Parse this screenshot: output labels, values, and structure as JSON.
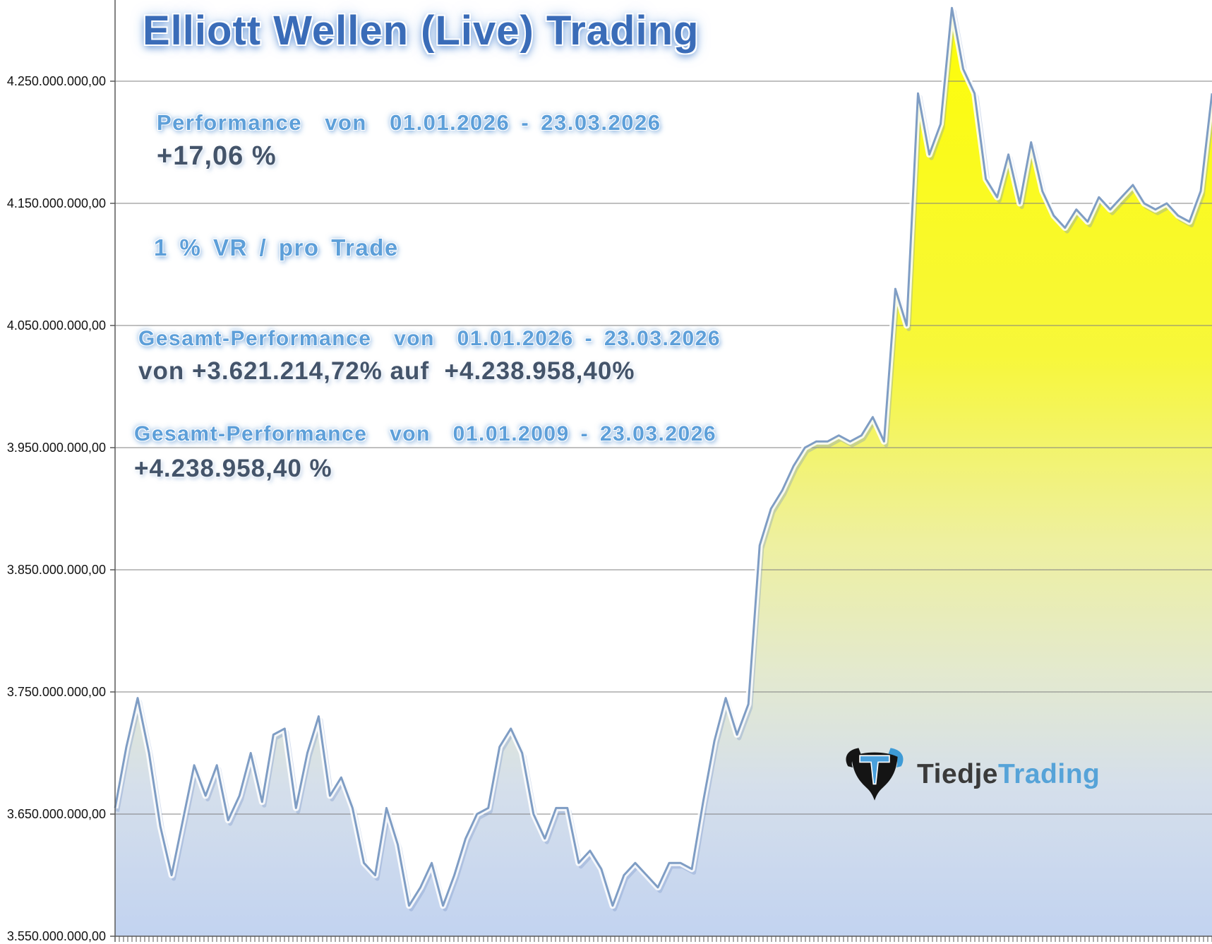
{
  "title": "Elliott Wellen (Live) Trading",
  "annotations": {
    "performance_period": "Performance  von  01.01.2026 - 23.03.2026",
    "performance_value": "+17,06 %",
    "risk_note": "1 % VR / pro Trade",
    "total_2026_label": "Gesamt-Performance  von  01.01.2026 - 23.03.2026",
    "total_2026_value": "von +3.621.214,72% auf  +4.238.958,40%",
    "total_2009_label": "Gesamt-Performance  von  01.01.2009 - 23.03.2026",
    "total_2009_value": "+4.238.958,40 %"
  },
  "logo": {
    "name_dark": "Tiedje",
    "name_light": "Trading"
  },
  "colors": {
    "title_blue": "#3a6cb8",
    "heading_blue": "#5d9fd9",
    "value_dark": "#44546a",
    "line": "#7f9dc4",
    "area_top_yellow": "#fdfd06",
    "area_bottom_blue": "#c2d3f0",
    "grid": "#808080",
    "axis": "#595959",
    "logo_blue": "#4aa0dc"
  },
  "chart_data": {
    "type": "area",
    "title": "Elliott Wellen (Live) Trading",
    "x_start": "01.01.2026",
    "x_end": "23.03.2026",
    "x_tick_labels_visible": false,
    "grid": true,
    "legend": false,
    "ylim_billions": [
      3.55,
      4.25
    ],
    "y_tick_step_billions": 0.1,
    "y_tick_labels": [
      "4.250.000.000,00",
      "4.150.000.000,00",
      "4.050.000.000,00",
      "3.950.000.000,00",
      "3.850.000.000,00",
      "3.750.000.000,00",
      "3.650.000.000,00",
      "3.550.000.000,00"
    ],
    "start_percent": "+3.621.214,72%",
    "end_percent": "+4.238.958,40%",
    "period_performance_percent": "+17,06 %",
    "values_in_billions": [
      3.655,
      3.705,
      3.745,
      3.7,
      3.64,
      3.6,
      3.645,
      3.69,
      3.665,
      3.69,
      3.645,
      3.665,
      3.7,
      3.66,
      3.715,
      3.72,
      3.655,
      3.7,
      3.73,
      3.665,
      3.68,
      3.655,
      3.61,
      3.6,
      3.655,
      3.625,
      3.575,
      3.59,
      3.61,
      3.575,
      3.6,
      3.63,
      3.65,
      3.655,
      3.705,
      3.72,
      3.7,
      3.65,
      3.63,
      3.655,
      3.655,
      3.61,
      3.62,
      3.605,
      3.575,
      3.6,
      3.61,
      3.6,
      3.59,
      3.61,
      3.61,
      3.605,
      3.66,
      3.71,
      3.745,
      3.715,
      3.74,
      3.87,
      3.9,
      3.915,
      3.935,
      3.95,
      3.955,
      3.955,
      3.96,
      3.955,
      3.96,
      3.975,
      3.955,
      4.08,
      4.05,
      4.24,
      4.19,
      4.215,
      4.31,
      4.26,
      4.24,
      4.17,
      4.155,
      4.19,
      4.15,
      4.2,
      4.16,
      4.14,
      4.13,
      4.145,
      4.135,
      4.155,
      4.145,
      4.155,
      4.165,
      4.15,
      4.145,
      4.15,
      4.14,
      4.135,
      4.16,
      4.24
    ]
  }
}
